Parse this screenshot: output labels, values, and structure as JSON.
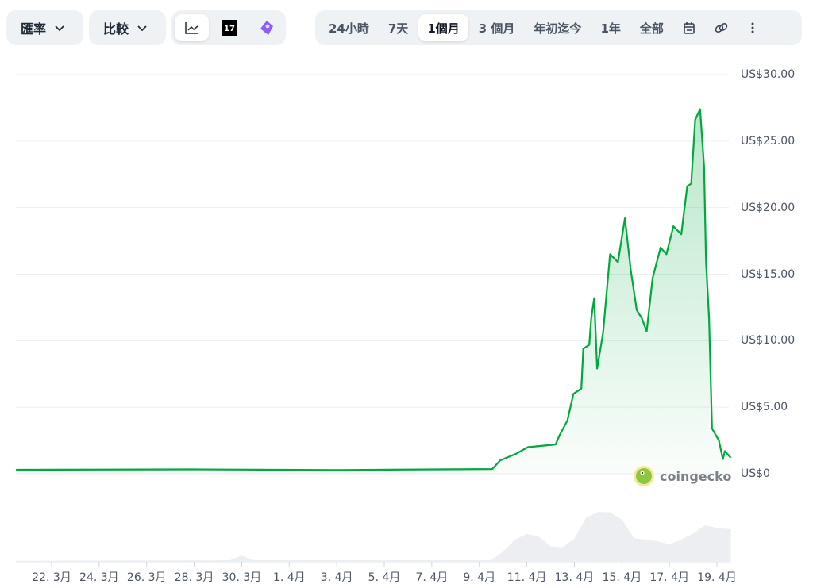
{
  "toolbar": {
    "rate_label": "匯率",
    "compare_label": "比較",
    "chart_types": [
      {
        "icon": "line-chart-icon",
        "selected": true
      },
      {
        "icon": "tradingview-icon"
      },
      {
        "icon": "gecko-icon"
      }
    ],
    "ranges": [
      {
        "label": "24小時"
      },
      {
        "label": "7天"
      },
      {
        "label": "1個月",
        "selected": true
      },
      {
        "label": "3 個月"
      },
      {
        "label": "年初迄今"
      },
      {
        "label": "1年"
      },
      {
        "label": "全部"
      }
    ],
    "extra_icons": [
      "calendar-icon",
      "link-icon",
      "more-vertical-icon"
    ]
  },
  "brand": "coingecko",
  "chart_data": {
    "type": "area",
    "line_color": "#00a83e",
    "grid": true,
    "ylim": [
      0,
      30
    ],
    "y_ticks": [
      {
        "v": 30,
        "label": "US$30.00"
      },
      {
        "v": 25,
        "label": "US$25.00"
      },
      {
        "v": 20,
        "label": "US$20.00"
      },
      {
        "v": 15,
        "label": "US$15.00"
      },
      {
        "v": 10,
        "label": "US$10.00"
      },
      {
        "v": 5,
        "label": "US$5.00"
      },
      {
        "v": 0,
        "label": "US$0"
      }
    ],
    "x_ticks": [
      {
        "d": "03-22",
        "label": "22. 3月"
      },
      {
        "d": "03-24",
        "label": "24. 3月"
      },
      {
        "d": "03-26",
        "label": "26. 3月"
      },
      {
        "d": "03-28",
        "label": "28. 3月"
      },
      {
        "d": "03-30",
        "label": "30. 3月"
      },
      {
        "d": "04-01",
        "label": "1. 4月"
      },
      {
        "d": "04-03",
        "label": "3. 4月"
      },
      {
        "d": "04-05",
        "label": "5. 4月"
      },
      {
        "d": "04-07",
        "label": "7. 4月"
      },
      {
        "d": "04-09",
        "label": "9. 4月"
      },
      {
        "d": "04-11",
        "label": "11. 4月"
      },
      {
        "d": "04-13",
        "label": "13. 4月"
      },
      {
        "d": "04-15",
        "label": "15. 4月"
      },
      {
        "d": "04-17",
        "label": "17. 4月"
      },
      {
        "d": "04-19",
        "label": "19. 4月"
      }
    ],
    "price": [
      [
        "03-20 12:00",
        0.3
      ],
      [
        "03-28 00:00",
        0.33
      ],
      [
        "04-03 00:00",
        0.28
      ],
      [
        "04-09 13:00",
        0.35
      ],
      [
        "04-09 21:00",
        1.0
      ],
      [
        "04-10 13:00",
        1.5
      ],
      [
        "04-11 01:00",
        2.0
      ],
      [
        "04-12 05:00",
        2.2
      ],
      [
        "04-12 09:00",
        2.9
      ],
      [
        "04-12 17:00",
        4.0
      ],
      [
        "04-12 23:00",
        6.0
      ],
      [
        "04-13 07:00",
        6.4
      ],
      [
        "04-13 09:00",
        9.4
      ],
      [
        "04-13 15:00",
        9.7
      ],
      [
        "04-13 17:00",
        11.7
      ],
      [
        "04-13 20:00",
        13.2
      ],
      [
        "04-13 23:00",
        7.9
      ],
      [
        "04-14 05:00",
        10.6
      ],
      [
        "04-14 12:00",
        16.5
      ],
      [
        "04-14 20:00",
        15.9
      ],
      [
        "04-15 03:00",
        19.2
      ],
      [
        "04-15 09:00",
        15.3
      ],
      [
        "04-15 15:00",
        12.3
      ],
      [
        "04-15 20:00",
        11.7
      ],
      [
        "04-16 01:00",
        10.7
      ],
      [
        "04-16 07:00",
        14.7
      ],
      [
        "04-16 15:00",
        17.0
      ],
      [
        "04-16 21:00",
        16.5
      ],
      [
        "04-17 04:00",
        18.6
      ],
      [
        "04-17 12:00",
        18.0
      ],
      [
        "04-17 18:00",
        21.6
      ],
      [
        "04-17 22:00",
        21.8
      ],
      [
        "04-18 02:00",
        26.6
      ],
      [
        "04-18 07:00",
        27.4
      ],
      [
        "04-18 11:00",
        23.1
      ],
      [
        "04-18 13:00",
        15.9
      ],
      [
        "04-18 16:00",
        11.7
      ],
      [
        "04-18 19:00",
        3.4
      ],
      [
        "04-19 02:00",
        2.5
      ],
      [
        "04-19 06:00",
        1.1
      ],
      [
        "04-19 08:00",
        1.7
      ],
      [
        "04-19 14:00",
        1.2
      ]
    ],
    "volume_relative": [
      [
        "03-20 12:00",
        0.02
      ],
      [
        "03-29 12:00",
        0.03
      ],
      [
        "03-30 00:00",
        0.12
      ],
      [
        "03-30 12:00",
        0.03
      ],
      [
        "04-09 12:00",
        0.03
      ],
      [
        "04-10 00:00",
        0.2
      ],
      [
        "04-10 12:00",
        0.43
      ],
      [
        "04-11 00:00",
        0.54
      ],
      [
        "04-11 12:00",
        0.49
      ],
      [
        "04-12 00:00",
        0.3
      ],
      [
        "04-12 12:00",
        0.28
      ],
      [
        "04-13 00:00",
        0.45
      ],
      [
        "04-13 12:00",
        0.86
      ],
      [
        "04-14 00:00",
        0.97
      ],
      [
        "04-14 12:00",
        0.96
      ],
      [
        "04-15 00:00",
        0.82
      ],
      [
        "04-15 12:00",
        0.46
      ],
      [
        "04-16 00:00",
        0.43
      ],
      [
        "04-16 12:00",
        0.4
      ],
      [
        "04-17 00:00",
        0.34
      ],
      [
        "04-17 12:00",
        0.43
      ],
      [
        "04-18 00:00",
        0.55
      ],
      [
        "04-18 12:00",
        0.71
      ],
      [
        "04-19 00:00",
        0.66
      ],
      [
        "04-19 14:00",
        0.63
      ]
    ]
  }
}
